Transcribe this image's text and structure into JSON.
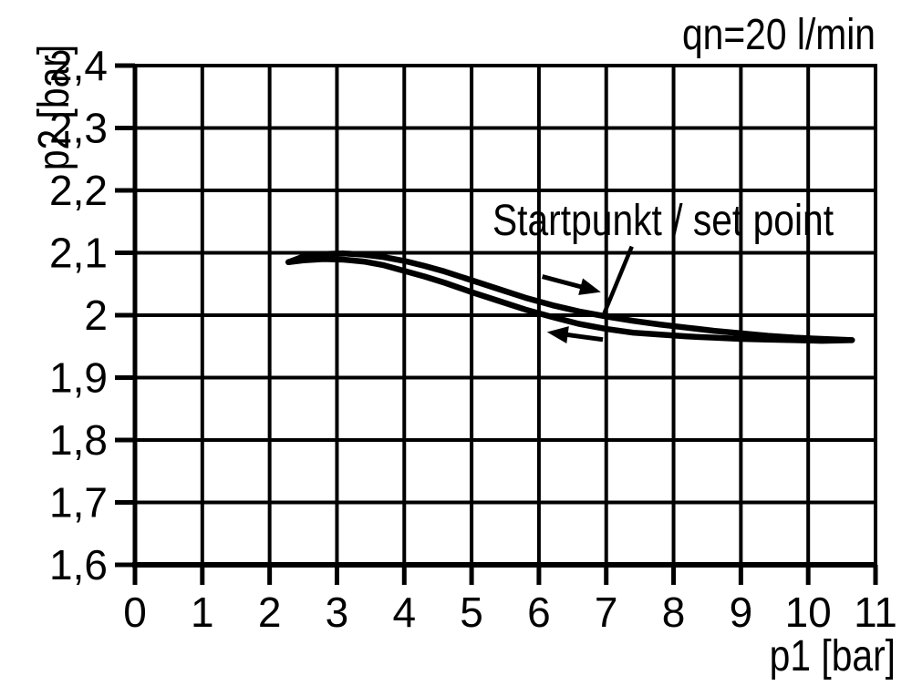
{
  "chart_data": {
    "type": "line",
    "title": "qn=20 l/min",
    "xlabel": "p1 [bar]",
    "ylabel": "p2 [bar]",
    "xlim": [
      0,
      11
    ],
    "ylim": [
      1.6,
      2.4
    ],
    "grid": true,
    "legend": "none",
    "x_ticks": {
      "values": [
        0,
        1,
        2,
        3,
        4,
        5,
        6,
        7,
        8,
        9,
        10,
        11
      ],
      "labels": [
        "0",
        "1",
        "2",
        "3",
        "4",
        "5",
        "6",
        "7",
        "8",
        "9",
        "10",
        "11"
      ]
    },
    "y_ticks": {
      "values": [
        2.4,
        2.3,
        2.2,
        2.1,
        2.0,
        1.9,
        1.8,
        1.7,
        1.6
      ],
      "labels": [
        "2,4",
        "2,3",
        "2,2",
        "2,1",
        "2",
        "1,9",
        "1,8",
        "1,7",
        "1,6"
      ]
    },
    "series": [
      {
        "x": [
          2.28,
          2.5,
          2.8,
          3.1,
          3.4,
          3.7,
          4.0,
          4.3,
          4.6,
          5.0,
          5.4,
          5.8,
          6.2,
          6.6,
          7.0,
          7.4,
          7.8,
          8.2,
          8.6,
          9.0,
          9.4,
          9.8,
          10.2,
          10.65
        ],
        "y": [
          2.085,
          2.094,
          2.098,
          2.099,
          2.097,
          2.093,
          2.087,
          2.079,
          2.07,
          2.056,
          2.042,
          2.028,
          2.016,
          2.006,
          1.998,
          1.991,
          1.985,
          1.98,
          1.975,
          1.971,
          1.967,
          1.964,
          1.962,
          1.96
        ]
      },
      {
        "x": [
          2.28,
          2.5,
          2.8,
          3.1,
          3.4,
          3.7,
          4.0,
          4.3,
          4.6,
          5.0,
          5.4,
          5.8,
          6.2,
          6.6,
          7.0,
          7.4,
          7.8,
          8.2,
          8.6,
          9.0,
          9.4,
          9.8,
          10.2,
          10.65
        ],
        "y": [
          2.085,
          2.088,
          2.09,
          2.089,
          2.086,
          2.08,
          2.071,
          2.062,
          2.052,
          2.037,
          2.023,
          2.009,
          1.997,
          1.986,
          1.978,
          1.972,
          1.969,
          1.966,
          1.964,
          1.962,
          1.961,
          1.96,
          1.959,
          1.96
        ]
      }
    ],
    "annotations": {
      "set_point_label": "Startpunkt / set point",
      "leader_line": {
        "from": [
          7.38,
          2.11
        ],
        "to": [
          6.97,
          2.003
        ]
      },
      "arrows": [
        {
          "from": [
            6.05,
            2.062
          ],
          "to": [
            6.92,
            2.037
          ]
        },
        {
          "from": [
            6.95,
            1.961
          ],
          "to": [
            6.12,
            1.973
          ]
        }
      ]
    },
    "colors": {
      "foreground": "#000000",
      "background": "#ffffff"
    }
  }
}
